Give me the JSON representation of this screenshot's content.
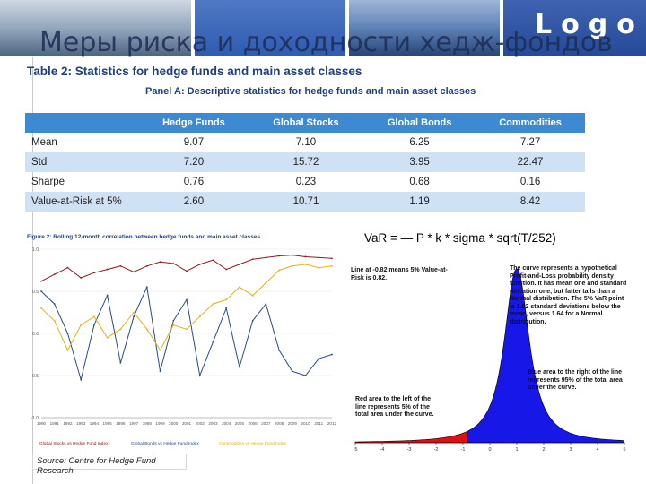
{
  "header": {
    "title": "Меры риска и доходности хедж-фондов",
    "logo": "Logo"
  },
  "table": {
    "title": "Table 2: Statistics for hedge funds and main asset classes",
    "panel_title": "Panel A: Descriptive statistics for hedge funds and main asset classes",
    "columns": [
      "",
      "Hedge Funds",
      "Global Stocks",
      "Global Bonds",
      "Commodities"
    ],
    "rows": [
      {
        "label": "Mean",
        "values": [
          "9.07",
          "7.10",
          "6.25",
          "7.27"
        ]
      },
      {
        "label": "Std",
        "values": [
          "7.20",
          "15.72",
          "3.95",
          "22.47"
        ]
      },
      {
        "label": "Sharpe",
        "values": [
          "0.76",
          "0.23",
          "0.68",
          "0.16"
        ]
      },
      {
        "label": "Value-at-Risk at 5%",
        "values": [
          "2.60",
          "10.71",
          "1.19",
          "8.42"
        ]
      }
    ]
  },
  "chart_data": [
    {
      "type": "line",
      "title": "Figure 2: Rolling 12-month correlation between hedge funds and main asset classes",
      "x": [
        "1990",
        "1991",
        "1992",
        "1993",
        "1994",
        "1995",
        "1996",
        "1997",
        "1998",
        "1999",
        "2000",
        "2001",
        "2002",
        "2003",
        "2004",
        "2005",
        "2006",
        "2007",
        "2008",
        "2009",
        "2010",
        "2011",
        "2012"
      ],
      "ylim": [
        -1.0,
        1.0
      ],
      "yticks": [
        "1.0",
        "0.5",
        "0.0",
        "-0.5",
        "-1.0"
      ],
      "series": [
        {
          "name": "Global Stocks vs Hedge Fund Index",
          "color": "#8a1a22",
          "values": [
            0.62,
            0.7,
            0.78,
            0.66,
            0.72,
            0.76,
            0.8,
            0.73,
            0.8,
            0.85,
            0.83,
            0.74,
            0.82,
            0.87,
            0.76,
            0.82,
            0.88,
            0.9,
            0.92,
            0.93,
            0.91,
            0.9,
            0.89
          ]
        },
        {
          "name": "Global Bonds vs Hedge Fund Index",
          "color": "#2a4a8a",
          "values": [
            0.5,
            0.35,
            0.0,
            -0.55,
            0.1,
            0.45,
            -0.35,
            0.2,
            0.55,
            -0.45,
            0.15,
            0.4,
            -0.5,
            -0.1,
            0.3,
            -0.4,
            0.15,
            0.35,
            -0.2,
            -0.45,
            -0.5,
            -0.3,
            -0.25
          ]
        },
        {
          "name": "Commodities vs Hedge Fund Index",
          "color": "#e0b11a",
          "values": [
            0.3,
            0.15,
            -0.2,
            0.1,
            0.2,
            -0.05,
            0.05,
            0.25,
            0.05,
            -0.2,
            0.1,
            0.05,
            0.2,
            0.35,
            0.4,
            0.55,
            0.45,
            0.6,
            0.75,
            0.8,
            0.82,
            0.78,
            0.8
          ]
        }
      ],
      "source": "Source: Centre for Hedge Fund Research"
    },
    {
      "type": "area",
      "title": "",
      "formula": "VaR = — P * k * sigma * sqrt(T/252)",
      "xticks": [
        "-5",
        "-4",
        "-3",
        "-2",
        "-1",
        "0",
        "1",
        "2",
        "3",
        "4",
        "5"
      ],
      "xlim": [
        -5,
        5
      ],
      "var_line": -0.82,
      "annotations": {
        "var_line": "Line at -0.82 means 5% Value-at-Risk is 0.82.",
        "curve": "The curve represents a hypothetical Profit-and-Loss probability density function. It has mean one and standard deviation one, but fatter tails than a Normal distribution. The 5% VaR point is 1.82 standard deviations below the mean, versus 1.64 for a Normal distribution.",
        "blue_area": "Blue area to the right of the line represents 95% of the total area under the curve.",
        "red_area": "Red area to the left of the line represents 5% of the total area under the curve."
      },
      "colors": {
        "tail": "#e01010",
        "body": "#1717e8"
      }
    }
  ]
}
